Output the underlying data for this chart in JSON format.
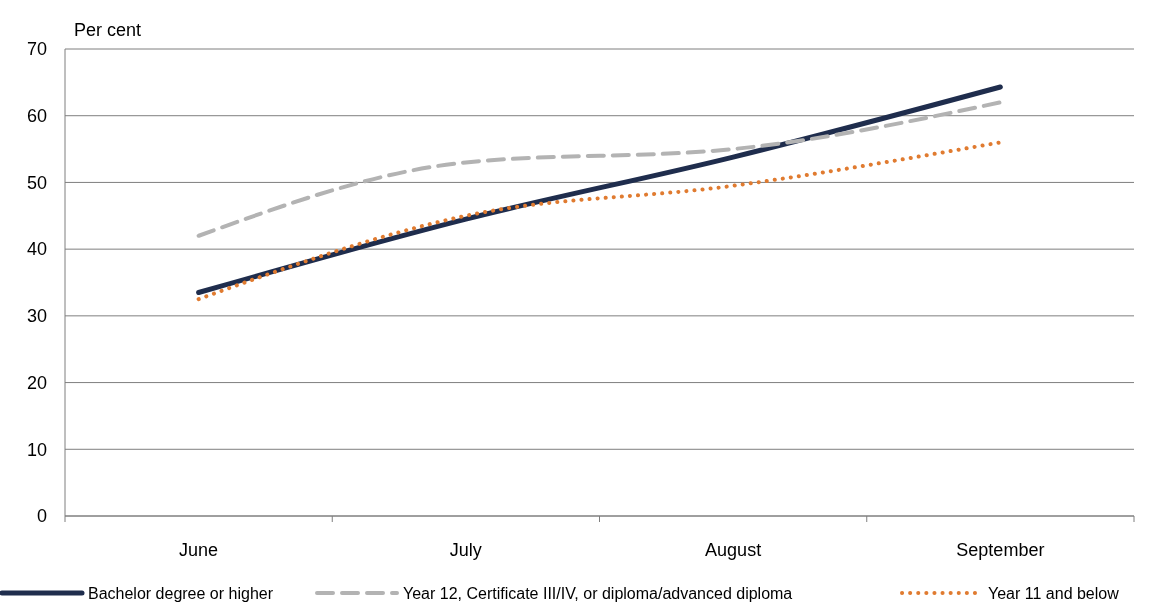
{
  "chart_data": {
    "type": "line",
    "ylabel": "Per cent",
    "categories": [
      "June",
      "July",
      "August",
      "September"
    ],
    "series": [
      {
        "name": "Bachelor degree or higher",
        "color": "#1f2d4d",
        "values": [
          33.5,
          44.5,
          53.8,
          64.3
        ],
        "line_style": "solid"
      },
      {
        "name": "Year 12, Certificate III/IV, or diploma/advanced diploma",
        "color": "#b3b3b3",
        "values": [
          42,
          53,
          55,
          62
        ],
        "line_style": "dashed"
      },
      {
        "name": "Year 11 and below",
        "color": "#e07b30",
        "values": [
          32.5,
          45,
          49.5,
          56
        ],
        "line_style": "dotted"
      }
    ],
    "ylim": [
      0,
      70
    ],
    "yticks": [
      0,
      10,
      20,
      30,
      40,
      50,
      60,
      70
    ],
    "grid": "y",
    "legend": "bottom"
  }
}
